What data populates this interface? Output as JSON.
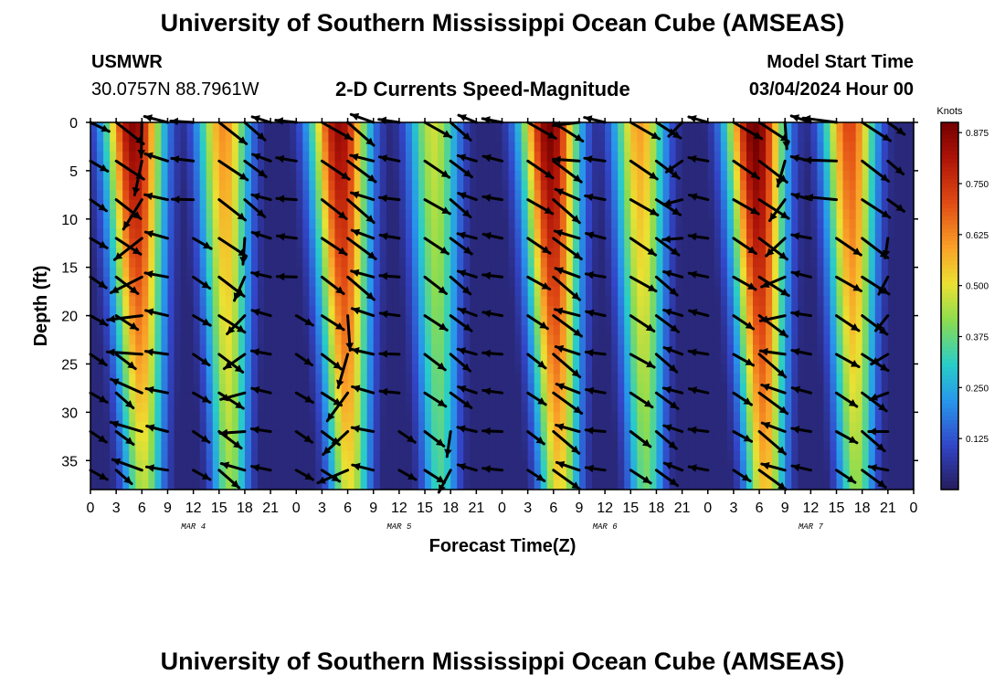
{
  "header": {
    "title": "University of Southern Mississippi Ocean Cube (AMSEAS)",
    "station": "USMWR",
    "coords": "30.0757N  88.7961W",
    "plot_title": "2-D Currents Speed-Magnitude",
    "model_start_label": "Model Start Time",
    "model_start_value": "03/04/2024 Hour 00"
  },
  "footer": {
    "title": "University of Southern Mississippi Ocean Cube (AMSEAS)"
  },
  "chart_data": {
    "type": "heatmap",
    "title": "2-D Currents Speed-Magnitude",
    "xlabel": "Forecast Time(Z)",
    "ylabel": "Depth (ft)",
    "x_ticks": [
      "0",
      "3",
      "6",
      "9",
      "12",
      "15",
      "18",
      "21",
      "0",
      "3",
      "6",
      "9",
      "12",
      "15",
      "18",
      "21",
      "0",
      "3",
      "6",
      "9",
      "12",
      "15",
      "18",
      "21",
      "0",
      "3",
      "6",
      "9",
      "12",
      "15",
      "18",
      "21",
      "0"
    ],
    "x_range_hours": [
      0,
      96
    ],
    "day_labels": [
      {
        "label": "MAR 4",
        "hour": 12
      },
      {
        "label": "MAR 5",
        "hour": 36
      },
      {
        "label": "MAR 6",
        "hour": 60
      },
      {
        "label": "MAR 7",
        "hour": 84
      }
    ],
    "y_ticks": [
      0,
      5,
      10,
      15,
      20,
      25,
      30,
      35
    ],
    "y_range_ft": [
      0,
      38
    ],
    "y_inverted": true,
    "colorbar": {
      "title": "Knots",
      "range": [
        0,
        0.9
      ],
      "ticks": [
        0.125,
        0.25,
        0.375,
        0.5,
        0.625,
        0.75,
        0.875
      ],
      "tick_labels": [
        "0.125",
        "0.250",
        "0.375",
        "0.500",
        "0.625",
        "0.750",
        "0.875"
      ]
    },
    "speed_peaks": [
      {
        "hour": 5,
        "surface": 0.88,
        "bottom": 0.45
      },
      {
        "hour": 15.5,
        "surface": 0.62,
        "bottom": 0.42
      },
      {
        "hour": 29,
        "surface": 0.86,
        "bottom": 0.5
      },
      {
        "hour": 40,
        "surface": 0.48,
        "bottom": 0.34
      },
      {
        "hour": 53.5,
        "surface": 0.9,
        "bottom": 0.52
      },
      {
        "hour": 64,
        "surface": 0.6,
        "bottom": 0.38
      },
      {
        "hour": 77.5,
        "surface": 0.92,
        "bottom": 0.55
      },
      {
        "hour": 88.5,
        "surface": 0.72,
        "bottom": 0.42
      }
    ],
    "speed_minima_hours": [
      9,
      21,
      33,
      45,
      57,
      69,
      80,
      93
    ],
    "vector_columns_hours": [
      0,
      3,
      6,
      9,
      12,
      15,
      18,
      21,
      24,
      27,
      30,
      33,
      36,
      39,
      42,
      45,
      48,
      51,
      54,
      57,
      60,
      63,
      66,
      69,
      72,
      75,
      78,
      81,
      84,
      87,
      90,
      93,
      96
    ],
    "vector_rows_ft": [
      0,
      4,
      8,
      12,
      16,
      20,
      24,
      28,
      32,
      36
    ]
  }
}
